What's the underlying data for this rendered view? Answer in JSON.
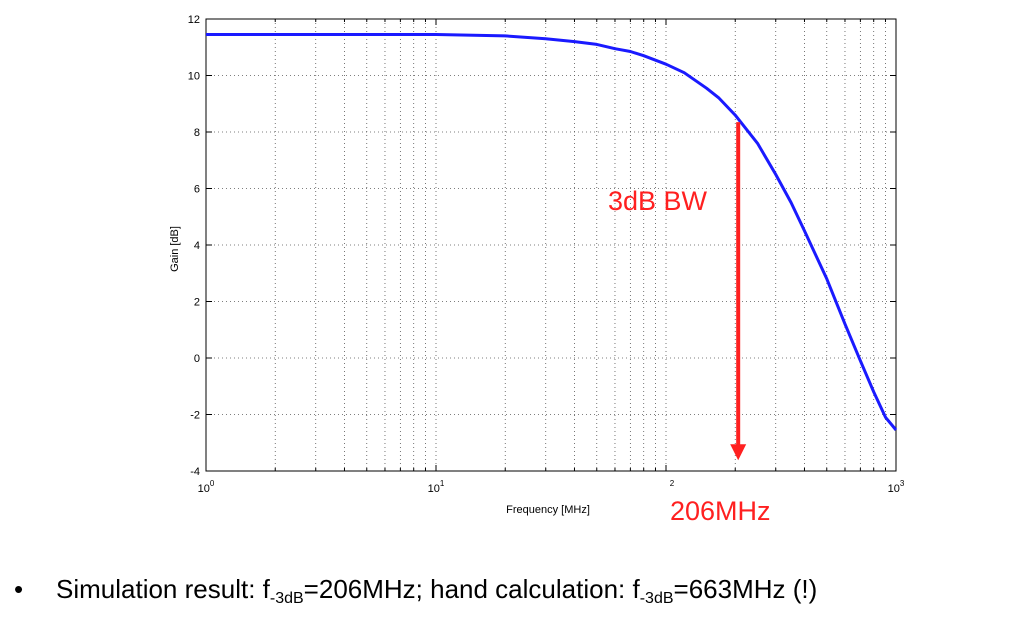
{
  "chart_data": {
    "type": "line",
    "title": "",
    "xlabel": "Frequency [MHz]",
    "ylabel": "Gain [dB]",
    "xscale": "log",
    "xlim": [
      1,
      1000
    ],
    "ylim": [
      -4,
      12
    ],
    "grid": "dotted",
    "x_tick_labels": [
      {
        "base": "10",
        "exp": "0"
      },
      {
        "base": "10",
        "exp": "1"
      },
      {
        "base": "",
        "exp": "2"
      },
      {
        "base": "10",
        "exp": "3"
      }
    ],
    "y_ticks": [
      "-4",
      "-2",
      "0",
      "2",
      "4",
      "6",
      "8",
      "10",
      "12"
    ],
    "series": [
      {
        "color": "#1a1aff",
        "x": [
          1,
          2,
          5,
          10,
          20,
          30,
          40,
          50,
          60,
          70,
          80,
          100,
          120,
          150,
          170,
          200,
          250,
          300,
          350,
          400,
          500,
          600,
          700,
          800,
          900,
          1000
        ],
        "y": [
          11.45,
          11.45,
          11.45,
          11.45,
          11.4,
          11.3,
          11.2,
          11.1,
          10.95,
          10.85,
          10.7,
          10.4,
          10.1,
          9.55,
          9.2,
          8.6,
          7.6,
          6.5,
          5.5,
          4.5,
          2.8,
          1.2,
          -0.1,
          -1.2,
          -2.1,
          -2.55
        ]
      }
    ],
    "annotations": [
      {
        "type": "arrow",
        "x": 206,
        "y_from": 8.35,
        "y_to": -3.55,
        "color": "#ff2020"
      },
      {
        "type": "text",
        "text": "3dB BW",
        "color": "#ff2020"
      },
      {
        "type": "text",
        "text": "206MHz",
        "color": "#ff2020"
      }
    ]
  },
  "footnote": {
    "bullet": "•",
    "part1": "Simulation result: f",
    "sub1": "-3dB",
    "part2": "=206MHz; hand calculation: f",
    "sub2": "-3dB",
    "part3": "=663MHz (!)"
  }
}
